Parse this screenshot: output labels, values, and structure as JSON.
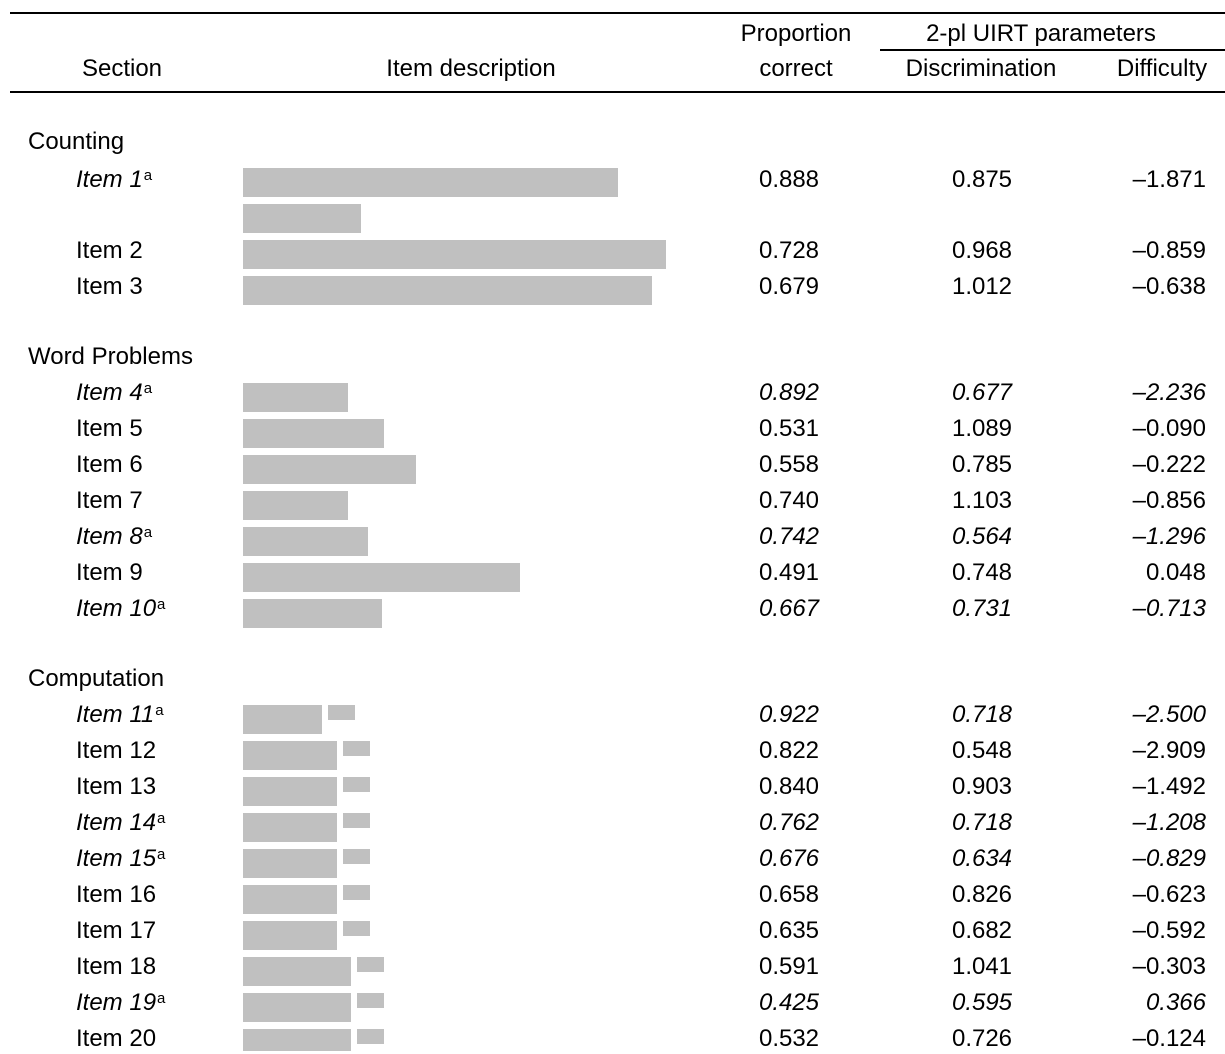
{
  "header": {
    "section": "Section",
    "item_description": "Item description",
    "proportion_line1": "Proportion",
    "proportion_line2": "correct",
    "uirt_group": "2-pl UIRT parameters",
    "discrimination": "Discrimination",
    "difficulty": "Difficulty"
  },
  "footnote_marker": "a",
  "sections": [
    {
      "name": "Counting"
    },
    {
      "name": "Word Problems"
    },
    {
      "name": "Computation"
    }
  ],
  "rows": [
    {
      "label": "Item 1",
      "footnote": true,
      "italic_values": false,
      "proportion": "0.888",
      "discrimination": "0.875",
      "difficulty": "–1.871"
    },
    {
      "label": "Item 2",
      "footnote": false,
      "italic_values": false,
      "proportion": "0.728",
      "discrimination": "0.968",
      "difficulty": "–0.859"
    },
    {
      "label": "Item 3",
      "footnote": false,
      "italic_values": false,
      "proportion": "0.679",
      "discrimination": "1.012",
      "difficulty": "–0.638"
    },
    {
      "label": "Item 4",
      "footnote": true,
      "italic_values": true,
      "proportion": "0.892",
      "discrimination": "0.677",
      "difficulty": "–2.236"
    },
    {
      "label": "Item 5",
      "footnote": false,
      "italic_values": false,
      "proportion": "0.531",
      "discrimination": "1.089",
      "difficulty": "–0.090"
    },
    {
      "label": "Item 6",
      "footnote": false,
      "italic_values": false,
      "proportion": "0.558",
      "discrimination": "0.785",
      "difficulty": "–0.222"
    },
    {
      "label": "Item 7",
      "footnote": false,
      "italic_values": false,
      "proportion": "0.740",
      "discrimination": "1.103",
      "difficulty": "–0.856"
    },
    {
      "label": "Item 8",
      "footnote": true,
      "italic_values": true,
      "proportion": "0.742",
      "discrimination": "0.564",
      "difficulty": "–1.296"
    },
    {
      "label": "Item 9",
      "footnote": false,
      "italic_values": false,
      "proportion": "0.491",
      "discrimination": "0.748",
      "difficulty": "0.048"
    },
    {
      "label": "Item 10",
      "footnote": true,
      "italic_values": true,
      "proportion": "0.667",
      "discrimination": "0.731",
      "difficulty": "–0.713"
    },
    {
      "label": "Item 11",
      "footnote": true,
      "italic_values": true,
      "proportion": "0.922",
      "discrimination": "0.718",
      "difficulty": "–2.500"
    },
    {
      "label": "Item 12",
      "footnote": false,
      "italic_values": false,
      "proportion": "0.822",
      "discrimination": "0.548",
      "difficulty": "–2.909"
    },
    {
      "label": "Item 13",
      "footnote": false,
      "italic_values": false,
      "proportion": "0.840",
      "discrimination": "0.903",
      "difficulty": "–1.492"
    },
    {
      "label": "Item 14",
      "footnote": true,
      "italic_values": true,
      "proportion": "0.762",
      "discrimination": "0.718",
      "difficulty": "–1.208"
    },
    {
      "label": "Item 15",
      "footnote": true,
      "italic_values": true,
      "proportion": "0.676",
      "discrimination": "0.634",
      "difficulty": "–0.829"
    },
    {
      "label": "Item 16",
      "footnote": false,
      "italic_values": false,
      "proportion": "0.658",
      "discrimination": "0.826",
      "difficulty": "–0.623"
    },
    {
      "label": "Item 17",
      "footnote": false,
      "italic_values": false,
      "proportion": "0.635",
      "discrimination": "0.682",
      "difficulty": "–0.592"
    },
    {
      "label": "Item 18",
      "footnote": false,
      "italic_values": false,
      "proportion": "0.591",
      "discrimination": "1.041",
      "difficulty": "–0.303"
    },
    {
      "label": "Item 19",
      "footnote": true,
      "italic_values": true,
      "proportion": "0.425",
      "discrimination": "0.595",
      "difficulty": "0.366"
    },
    {
      "label": "Item 20",
      "footnote": false,
      "italic_values": false,
      "proportion": "0.532",
      "discrimination": "0.726",
      "difficulty": "–0.124"
    }
  ]
}
